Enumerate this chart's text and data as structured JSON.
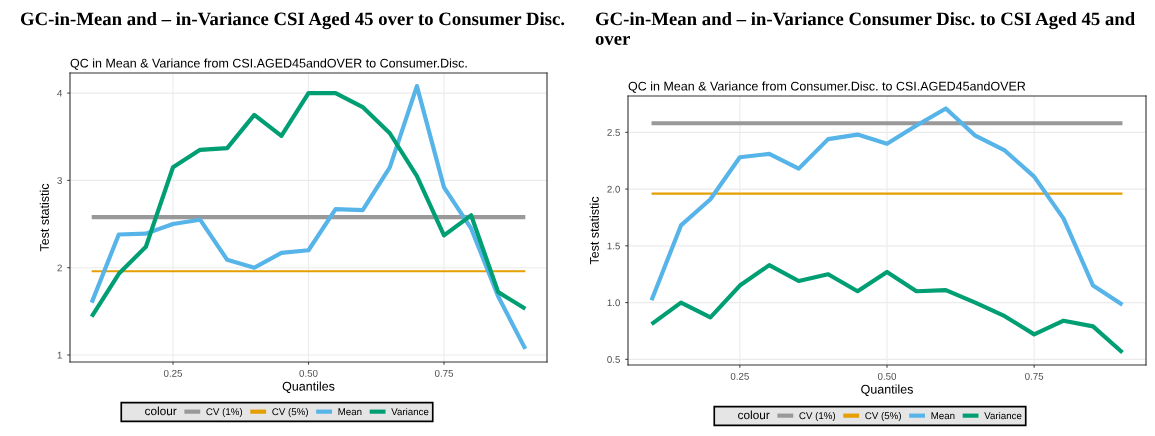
{
  "chart_data": [
    {
      "type": "line",
      "title": "GC-in-Mean and – in-Variance CSI Aged 45 over to Consumer Disc.",
      "subtitle": "QC in Mean & Variance from CSI.AGED45andOVER to Consumer.Disc.",
      "xlabel": "Quantiles",
      "ylabel": "Test statistic",
      "legend_title": "colour",
      "legend": "bottom",
      "grid": true,
      "xlim": [
        0.06,
        0.94
      ],
      "xticks": [
        {
          "value": 0.25,
          "label": "0.25"
        },
        {
          "value": 0.5,
          "label": "0.50"
        },
        {
          "value": 0.75,
          "label": "0.75"
        }
      ],
      "ylim": [
        0.92,
        4.23
      ],
      "yticks": [
        1,
        2,
        3,
        4
      ],
      "x": [
        0.1,
        0.15,
        0.2,
        0.25,
        0.3,
        0.35,
        0.4,
        0.45,
        0.5,
        0.55,
        0.6,
        0.65,
        0.7,
        0.75,
        0.8,
        0.85,
        0.9
      ],
      "series": [
        {
          "name": "CV (1%)",
          "color": "#999999",
          "values": [
            2.58,
            2.58,
            2.58,
            2.58,
            2.58,
            2.58,
            2.58,
            2.58,
            2.58,
            2.58,
            2.58,
            2.58,
            2.58,
            2.58,
            2.58,
            2.58,
            2.58
          ]
        },
        {
          "name": "CV (5%)",
          "color": "#e69f00",
          "values": [
            1.96,
            1.96,
            1.96,
            1.96,
            1.96,
            1.96,
            1.96,
            1.96,
            1.96,
            1.96,
            1.96,
            1.96,
            1.96,
            1.96,
            1.96,
            1.96,
            1.96
          ]
        },
        {
          "name": "Mean",
          "color": "#56b4e9",
          "values": [
            1.6,
            2.38,
            2.39,
            2.5,
            2.55,
            2.09,
            2.0,
            2.17,
            2.2,
            2.67,
            2.66,
            3.15,
            4.08,
            2.92,
            2.45,
            1.67,
            1.07
          ]
        },
        {
          "name": "Variance",
          "color": "#009e73",
          "values": [
            1.44,
            1.93,
            2.24,
            3.15,
            3.35,
            3.37,
            3.75,
            3.51,
            4.0,
            4.0,
            3.84,
            3.54,
            3.05,
            2.37,
            2.6,
            1.72,
            1.53
          ]
        }
      ]
    },
    {
      "type": "line",
      "title": "GC-in-Mean and – in-Variance Consumer Disc. to CSI Aged 45 and over",
      "subtitle": "QC in Mean & Variance from Consumer.Disc. to CSI.AGED45andOVER",
      "xlabel": "Quantiles",
      "ylabel": "Test statistic",
      "legend_title": "colour",
      "legend": "bottom",
      "grid": true,
      "xlim": [
        0.06,
        0.94
      ],
      "xticks": [
        {
          "value": 0.25,
          "label": "0.25"
        },
        {
          "value": 0.5,
          "label": "0.50"
        },
        {
          "value": 0.75,
          "label": "0.75"
        }
      ],
      "ylim": [
        0.45,
        2.82
      ],
      "yticks": [
        0.5,
        {
          "value": 1,
          "label": "1.0"
        },
        1.5,
        {
          "value": 2,
          "label": "2.0"
        },
        2.5
      ],
      "x": [
        0.1,
        0.15,
        0.2,
        0.25,
        0.3,
        0.35,
        0.4,
        0.45,
        0.5,
        0.55,
        0.6,
        0.65,
        0.7,
        0.75,
        0.8,
        0.85,
        0.9
      ],
      "series": [
        {
          "name": "CV (1%)",
          "color": "#999999",
          "values": [
            2.58,
            2.58,
            2.58,
            2.58,
            2.58,
            2.58,
            2.58,
            2.58,
            2.58,
            2.58,
            2.58,
            2.58,
            2.58,
            2.58,
            2.58,
            2.58,
            2.58
          ]
        },
        {
          "name": "CV (5%)",
          "color": "#e69f00",
          "values": [
            1.96,
            1.96,
            1.96,
            1.96,
            1.96,
            1.96,
            1.96,
            1.96,
            1.96,
            1.96,
            1.96,
            1.96,
            1.96,
            1.96,
            1.96,
            1.96,
            1.96
          ]
        },
        {
          "name": "Mean",
          "color": "#56b4e9",
          "values": [
            1.02,
            1.68,
            1.91,
            2.28,
            2.31,
            2.18,
            2.44,
            2.48,
            2.4,
            2.56,
            2.71,
            2.47,
            2.34,
            2.11,
            1.74,
            1.15,
            0.98
          ]
        },
        {
          "name": "Variance",
          "color": "#009e73",
          "values": [
            0.81,
            1.0,
            0.87,
            1.15,
            1.33,
            1.19,
            1.25,
            1.1,
            1.27,
            1.1,
            1.11,
            1.0,
            0.88,
            0.72,
            0.84,
            0.79,
            0.56
          ]
        }
      ]
    }
  ]
}
